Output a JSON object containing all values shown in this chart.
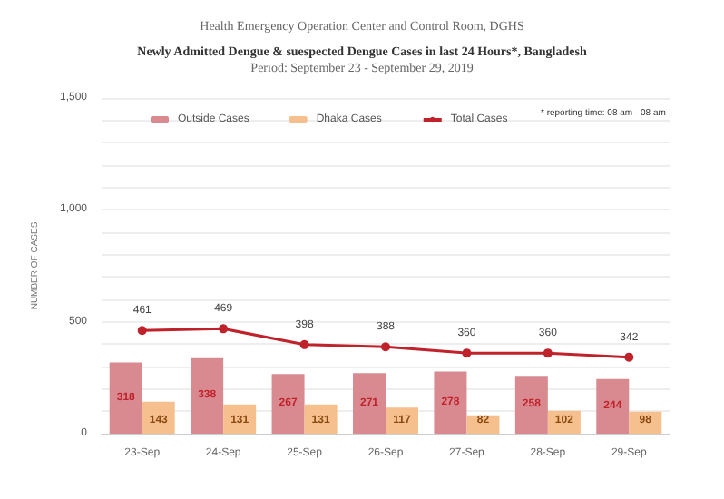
{
  "chart_data": {
    "type": "bar",
    "title": "Newly Admitted Dengue & suespected Dengue Cases in last 24 Hours*, Bangladesh",
    "subtitle": "Period: September 23 - September 29, 2019",
    "ylabel": "NUMBER OF CASES",
    "annotations": [
      "Health Emergency Operation Center and Control Room, DGHS",
      "* reporting time: 08 am - 08 am"
    ],
    "categories": [
      "23-Sep",
      "24-Sep",
      "25-Sep",
      "26-Sep",
      "27-Sep",
      "28-Sep",
      "29-Sep"
    ],
    "series": [
      {
        "name": "Outside Cases",
        "color": "#d98a90",
        "values": [
          318,
          338,
          267,
          271,
          278,
          258,
          244
        ]
      },
      {
        "name": "Dhaka Cases",
        "color": "#f6bf8e",
        "values": [
          143,
          131,
          131,
          117,
          82,
          102,
          98
        ]
      },
      {
        "name": "Total Cases",
        "type": "line",
        "color": "#c0222b",
        "values": [
          461,
          469,
          398,
          388,
          360,
          360,
          342
        ]
      }
    ],
    "ylim": [
      0,
      1500
    ],
    "yticks": [
      0,
      {
        "value": 100,
        "label": null
      },
      {
        "value": 200,
        "label": null
      },
      {
        "value": 300,
        "label": null
      },
      {
        "value": 400,
        "label": null
      },
      500,
      {
        "value": 600,
        "label": null
      },
      {
        "value": 700,
        "label": null
      },
      {
        "value": 800,
        "label": null
      },
      {
        "value": 900,
        "label": null
      },
      {
        "value": 1000,
        "label": "1,000"
      },
      {
        "value": 1100,
        "label": null
      },
      {
        "value": 1200,
        "label": null
      },
      {
        "value": 1300,
        "label": null
      },
      {
        "value": 1400,
        "label": null
      },
      {
        "value": 1500,
        "label": "1,500"
      }
    ],
    "grid": "y",
    "legend": "top",
    "marker": "circle",
    "line_style": "solid",
    "data_labels": true
  }
}
